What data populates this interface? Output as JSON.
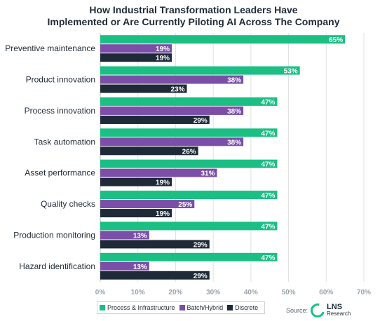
{
  "chart_data": {
    "type": "bar",
    "orientation": "horizontal",
    "title_lines": [
      "How Industrial Transformation Leaders Have",
      "Implemented or Are Currently Piloting AI Across The Company"
    ],
    "categories": [
      "Preventive maintenance",
      "Product innovation",
      "Process innovation",
      "Task automation",
      "Asset performance",
      "Quality checks",
      "Production monitoring",
      "Hazard identification"
    ],
    "series": [
      {
        "name": "Process & Infrastructure",
        "color": "#1bbf83",
        "values": [
          65,
          53,
          47,
          47,
          47,
          47,
          47,
          47
        ]
      },
      {
        "name": "Batch/Hybrid",
        "color": "#7b4fa8",
        "values": [
          19,
          38,
          38,
          38,
          31,
          25,
          13,
          13
        ]
      },
      {
        "name": "Discrete",
        "color": "#1e2a38",
        "values": [
          19,
          23,
          29,
          26,
          19,
          19,
          29,
          29
        ]
      }
    ],
    "xlim": [
      0,
      70
    ],
    "xticks": [
      "0%",
      "10%",
      "20%",
      "30%",
      "40%",
      "50%",
      "60%",
      "70%"
    ],
    "value_suffix": "%",
    "grid": true,
    "legend_position": "bottom"
  },
  "source": {
    "label": "Source:",
    "logo_main": "LNS",
    "logo_sub": "Research"
  }
}
